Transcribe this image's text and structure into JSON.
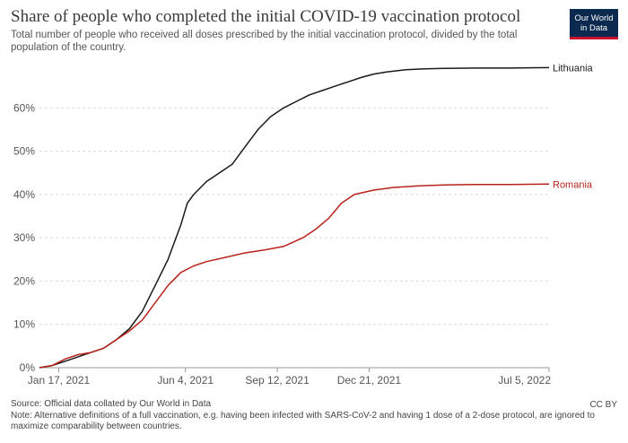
{
  "header": {
    "title": "Share of people who completed the initial COVID-19 vaccination protocol",
    "subtitle": "Total number of people who received all doses prescribed by the initial vaccination protocol, divided by the total population of the country.",
    "logo_line1": "Our World",
    "logo_line2": "in Data"
  },
  "footer": {
    "source": "Source: Official data collated by Our World in Data",
    "note": "Note: Alternative definitions of a full vaccination, e.g. having been infected with SARS-CoV-2 and having 1 dose of a 2-dose protocol, are ignored to maximize comparability between countries.",
    "license": "CC BY"
  },
  "colors": {
    "lithuania": "#1a1a1a",
    "romania": "#b8221b",
    "grid": "#d9d9d9",
    "axis": "#999999",
    "tick_label": "#555555"
  },
  "chart_data": {
    "type": "line",
    "title": "Share of people who completed the initial COVID-19 vaccination protocol",
    "xlabel": "",
    "ylabel": "",
    "grid": true,
    "ylim": [
      0,
      70
    ],
    "xlim": [
      "2020-12-27",
      "2022-07-05"
    ],
    "y_ticks": [
      0,
      10,
      20,
      30,
      40,
      50,
      60
    ],
    "y_tick_labels": [
      "0%",
      "10%",
      "20%",
      "30%",
      "40%",
      "50%",
      "60%"
    ],
    "x_ticks": [
      "2021-01-17",
      "2021-06-04",
      "2021-09-12",
      "2021-12-21",
      "2022-07-05"
    ],
    "x_tick_labels": [
      "Jan 17, 2021",
      "Jun 4, 2021",
      "Sep 12, 2021",
      "Dec 21, 2021",
      "Jul 5, 2022"
    ],
    "series": [
      {
        "name": "Lithuania",
        "color": "#1a1a1a",
        "points": [
          [
            "2020-12-27",
            0
          ],
          [
            "2021-01-10",
            0.5
          ],
          [
            "2021-01-24",
            1.5
          ],
          [
            "2021-02-07",
            2.5
          ],
          [
            "2021-02-21",
            3.5
          ],
          [
            "2021-03-07",
            4.5
          ],
          [
            "2021-03-21",
            6.5
          ],
          [
            "2021-04-04",
            9
          ],
          [
            "2021-04-18",
            13
          ],
          [
            "2021-05-02",
            19
          ],
          [
            "2021-05-16",
            25
          ],
          [
            "2021-05-30",
            33
          ],
          [
            "2021-06-06",
            38
          ],
          [
            "2021-06-13",
            40
          ],
          [
            "2021-06-27",
            43
          ],
          [
            "2021-07-11",
            45
          ],
          [
            "2021-07-25",
            47
          ],
          [
            "2021-08-08",
            51
          ],
          [
            "2021-08-22",
            55
          ],
          [
            "2021-09-05",
            58
          ],
          [
            "2021-09-19",
            60
          ],
          [
            "2021-10-03",
            61.5
          ],
          [
            "2021-10-17",
            63
          ],
          [
            "2021-10-31",
            64
          ],
          [
            "2021-11-14",
            65
          ],
          [
            "2021-11-28",
            66
          ],
          [
            "2021-12-12",
            67
          ],
          [
            "2021-12-26",
            67.8
          ],
          [
            "2022-01-09",
            68.3
          ],
          [
            "2022-01-30",
            68.8
          ],
          [
            "2022-02-20",
            69
          ],
          [
            "2022-03-13",
            69.1
          ],
          [
            "2022-04-17",
            69.2
          ],
          [
            "2022-05-22",
            69.2
          ],
          [
            "2022-07-05",
            69.3
          ]
        ]
      },
      {
        "name": "Romania",
        "color": "#b8221b",
        "points": [
          [
            "2020-12-27",
            0
          ],
          [
            "2021-01-10",
            0.5
          ],
          [
            "2021-01-24",
            2
          ],
          [
            "2021-02-07",
            3
          ],
          [
            "2021-02-21",
            3.5
          ],
          [
            "2021-03-07",
            4.5
          ],
          [
            "2021-03-21",
            6.5
          ],
          [
            "2021-04-04",
            8.5
          ],
          [
            "2021-04-18",
            11
          ],
          [
            "2021-05-02",
            15
          ],
          [
            "2021-05-16",
            19
          ],
          [
            "2021-05-30",
            22
          ],
          [
            "2021-06-13",
            23.5
          ],
          [
            "2021-06-27",
            24.5
          ],
          [
            "2021-07-18",
            25.5
          ],
          [
            "2021-08-08",
            26.5
          ],
          [
            "2021-08-29",
            27.2
          ],
          [
            "2021-09-19",
            28
          ],
          [
            "2021-10-10",
            30
          ],
          [
            "2021-10-24",
            32
          ],
          [
            "2021-11-07",
            34.5
          ],
          [
            "2021-11-21",
            38
          ],
          [
            "2021-12-05",
            40
          ],
          [
            "2021-12-26",
            41
          ],
          [
            "2022-01-16",
            41.6
          ],
          [
            "2022-02-13",
            42
          ],
          [
            "2022-03-13",
            42.2
          ],
          [
            "2022-04-17",
            42.3
          ],
          [
            "2022-05-22",
            42.3
          ],
          [
            "2022-07-05",
            42.4
          ]
        ]
      }
    ]
  }
}
